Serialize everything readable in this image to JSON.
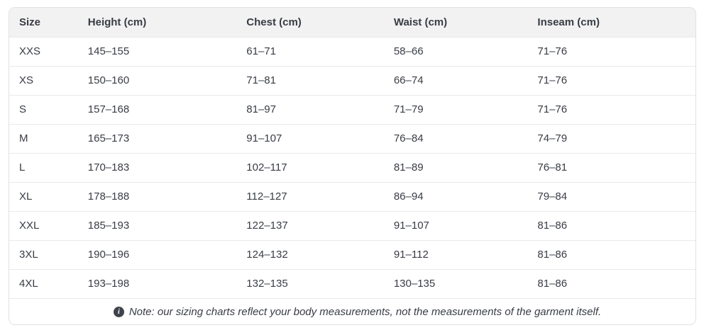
{
  "colors": {
    "header_background": "#f2f2f2",
    "outer_border": "#dfe1e4",
    "row_divider": "#e7e9eb",
    "text": "#383c44",
    "note_icon_background": "#3f434b"
  },
  "table": {
    "columns": [
      "Size",
      "Height (cm)",
      "Chest (cm)",
      "Waist (cm)",
      "Inseam (cm)"
    ],
    "rows": [
      [
        "XXS",
        "145–155",
        "61–71",
        "58–66",
        "71–76"
      ],
      [
        "XS",
        "150–160",
        "71–81",
        "66–74",
        "71–76"
      ],
      [
        "S",
        "157–168",
        "81–97",
        "71–79",
        "71–76"
      ],
      [
        "M",
        "165–173",
        "91–107",
        "76–84",
        "74–79"
      ],
      [
        "L",
        "170–183",
        "102–117",
        "81–89",
        "76–81"
      ],
      [
        "XL",
        "178–188",
        "112–127",
        "86–94",
        "79–84"
      ],
      [
        "XXL",
        "185–193",
        "122–137",
        "91–107",
        "81–86"
      ],
      [
        "3XL",
        "190–196",
        "124–132",
        "91–112",
        "81–86"
      ],
      [
        "4XL",
        "193–198",
        "132–135",
        "130–135",
        "81–86"
      ]
    ]
  },
  "note": {
    "icon": "info-icon",
    "text": "Note: our sizing charts reflect your body measurements, not the measurements of the garment itself."
  }
}
